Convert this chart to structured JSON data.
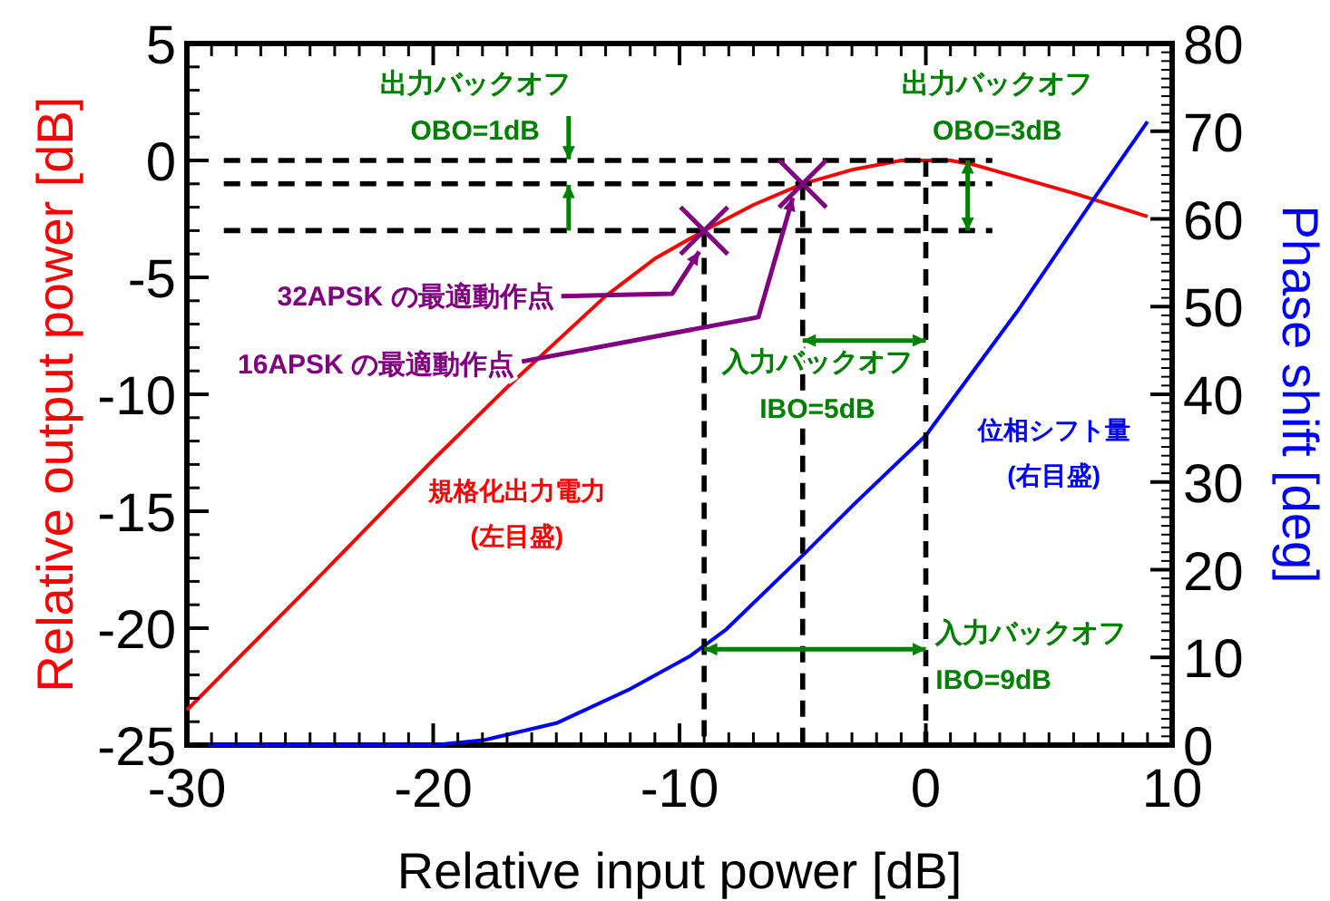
{
  "chart_data": {
    "type": "line",
    "xlabel": "Relative input power [dB]",
    "ylabel": "Relative output power [dB]",
    "y2label": "Phase shift [deg]",
    "xlim": [
      -30,
      10
    ],
    "xticks": [
      -30,
      -20,
      -10,
      0,
      10
    ],
    "ylim": [
      -25,
      5
    ],
    "yticks": [
      -25,
      -20,
      -15,
      -10,
      -5,
      0,
      5
    ],
    "y2lim": [
      0,
      80
    ],
    "y2ticks": [
      0,
      10,
      20,
      30,
      40,
      50,
      60,
      70,
      80
    ],
    "series": [
      {
        "name": "規格化出力電力\n(左目盛)",
        "color": "#ff0000",
        "x": [
          -30,
          -25,
          -20,
          -17,
          -13,
          -11,
          -9,
          -7,
          -5,
          -3,
          -1,
          0,
          1,
          2,
          4,
          6,
          9
        ],
        "values": [
          -23.5,
          -18.2,
          -12.8,
          -9.7,
          -5.8,
          -4.2,
          -3.0,
          -1.9,
          -1.0,
          -0.4,
          0,
          0,
          0,
          -0.2,
          -0.8,
          -1.4,
          -2.4
        ]
      },
      {
        "name": "位相シフト量\n(右目盛)",
        "color": "#0000ff",
        "axis": "y2",
        "x": [
          -30,
          -20,
          -17.9,
          -15,
          -12,
          -9.6,
          -8.1,
          -4.9,
          -2.9,
          0,
          3.7,
          6.8,
          9
        ],
        "values": [
          0,
          0,
          0.6,
          2.5,
          6.4,
          10.1,
          13.2,
          21.9,
          27.5,
          35.3,
          49.4,
          62.2,
          71.1
        ]
      },
      {
        "color": "#000000",
        "line_style": "dashed",
        "x": [
          -28.5,
          2.7
        ],
        "values": [
          0,
          0
        ]
      },
      {
        "color": "#000000",
        "line_style": "dashed",
        "x": [
          -28.5,
          2.7
        ],
        "values": [
          -1,
          -1
        ]
      },
      {
        "color": "#000000",
        "line_style": "dashed",
        "x": [
          -28.5,
          2.7
        ],
        "values": [
          -3,
          -3
        ]
      },
      {
        "color": "#000000",
        "line_style": "dashed",
        "x": [
          -9,
          -9
        ],
        "values": [
          -3,
          -25
        ]
      },
      {
        "color": "#000000",
        "line_style": "dashed",
        "x": [
          -5,
          -5
        ],
        "values": [
          -1,
          -25
        ]
      },
      {
        "color": "#000000",
        "line_style": "dashed",
        "x": [
          0,
          0
        ],
        "values": [
          0,
          -25
        ]
      },
      {
        "type": "scatter",
        "marker": "cross",
        "color": "#800080",
        "x": [
          -9,
          -5
        ],
        "values": [
          -3,
          -1
        ]
      }
    ],
    "annotations": [
      {
        "text": "出力バックオフ\nOBO=1dB",
        "x": -14.5,
        "y": 0
      },
      {
        "text": "出力バックオフ\nOBO=3dB",
        "x": 1.7,
        "y": 0
      },
      {
        "text": "入力バックオフ\nIBO=5dB",
        "x": 0,
        "y": -7.7
      },
      {
        "text": "入力バックオフ\nIBO=9dB",
        "x": 0,
        "y": -20.9
      },
      {
        "text": "32APSK の最適動作点",
        "x": -9.2,
        "y": -3.9
      },
      {
        "text": "16APSK の最適動作点",
        "x": -5.4,
        "y": -1.6
      }
    ]
  }
}
